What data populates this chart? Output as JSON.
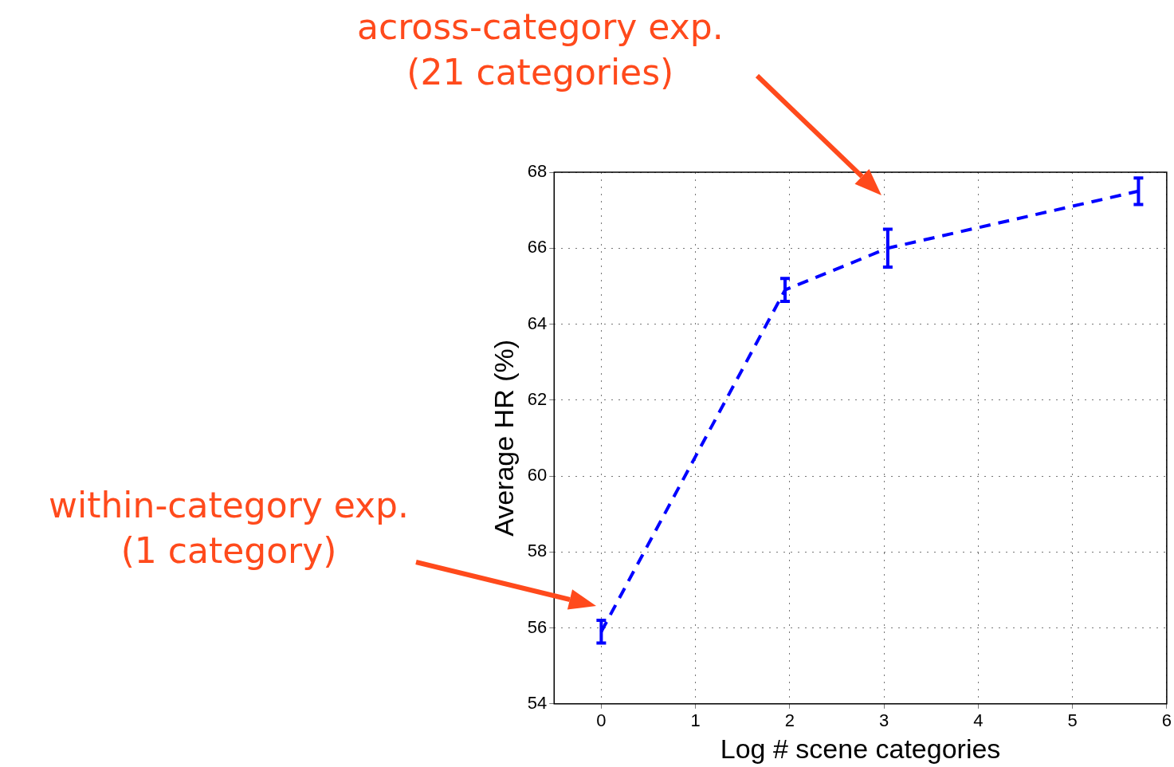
{
  "chart_data": {
    "type": "line",
    "xlabel": "Log # scene categories",
    "ylabel": "Average HR (%)",
    "xlim": [
      -0.5,
      6
    ],
    "xticks": [
      0,
      1,
      2,
      3,
      4,
      5,
      6
    ],
    "ylim": [
      54,
      68
    ],
    "yticks": [
      54,
      56,
      58,
      60,
      62,
      64,
      66,
      68
    ],
    "grid": true,
    "legend": false,
    "marker": "none",
    "line_style": "dashed",
    "series": [
      {
        "color": "#0000ff",
        "x": [
          0,
          1.95,
          3.04,
          5.7
        ],
        "values": [
          55.9,
          64.9,
          66.0,
          67.5
        ],
        "errors": [
          0.3,
          0.3,
          0.5,
          0.35
        ]
      }
    ],
    "annotations": [
      "within-category exp.\n(1 category)",
      "across-category exp.\n(21 categories)"
    ]
  }
}
